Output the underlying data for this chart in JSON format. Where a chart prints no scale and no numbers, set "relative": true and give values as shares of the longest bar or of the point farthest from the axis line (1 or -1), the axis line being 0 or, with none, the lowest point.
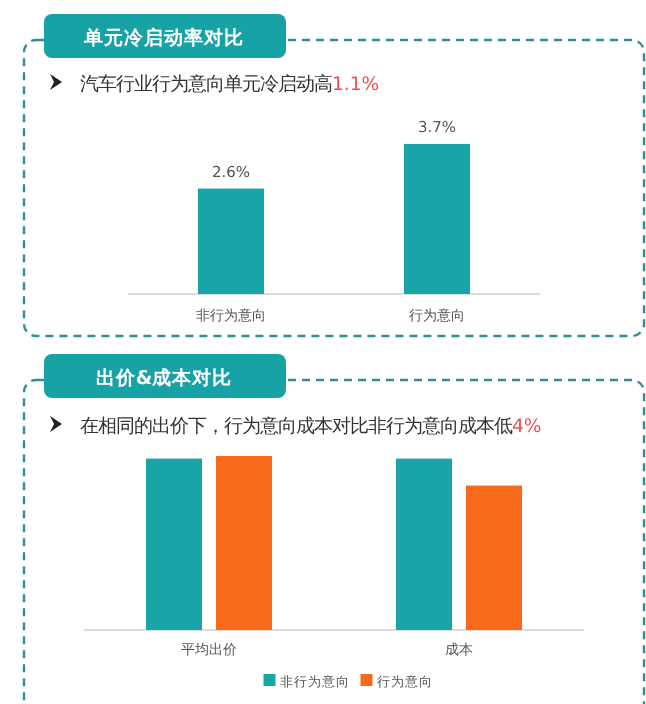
{
  "chart_data": [
    {
      "type": "bar",
      "title": "单元冷启动率对比",
      "subtitle": "汽车行业行为意向单元冷启动高",
      "annotations": [
        "1.1%"
      ],
      "categories": [
        "非行为意向",
        "行为意向"
      ],
      "values": [
        2.6,
        3.7
      ],
      "value_labels": [
        "2.6%",
        "3.7%"
      ],
      "color": "#17a5a8",
      "legend": false
    },
    {
      "type": "bar",
      "title": "出价&成本对比",
      "subtitle": "在相同的出价下，行为意向成本对比非行为意向成本低",
      "annotations": [
        "4%"
      ],
      "categories": [
        "平均出价",
        "成本"
      ],
      "relative": true,
      "series": [
        {
          "name": "非行为意向",
          "color": "#17a5a8",
          "values": [
            0.985,
            0.985
          ]
        },
        {
          "name": "行为意向",
          "color": "#f7691b",
          "values": [
            1,
            0.83
          ]
        }
      ],
      "legend": "bottom"
    }
  ]
}
